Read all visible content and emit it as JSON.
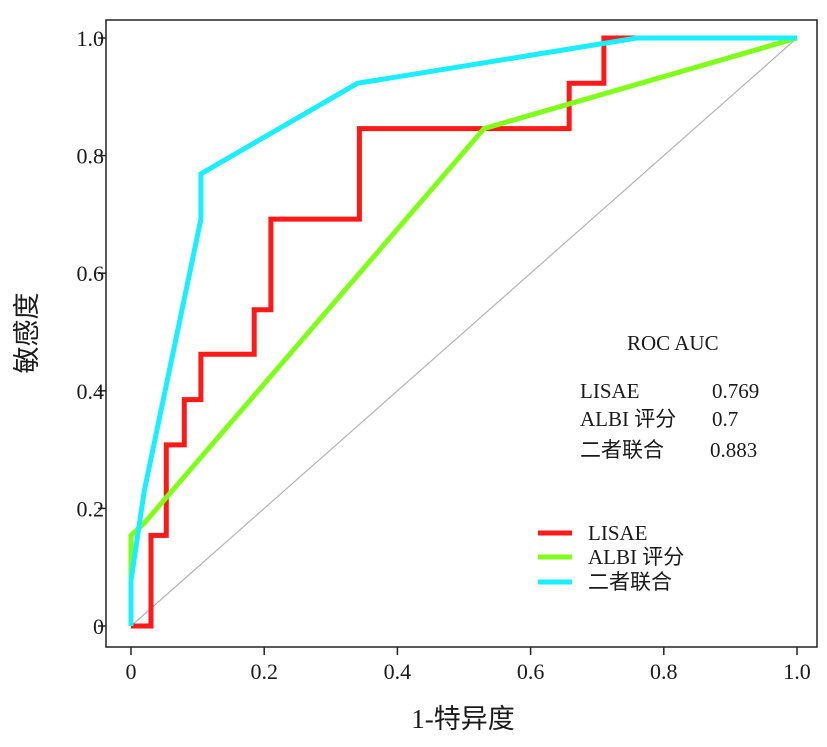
{
  "chart_data": {
    "type": "line",
    "title": "",
    "xlabel": "1-特异度",
    "ylabel": "敏感度",
    "xlim": [
      0,
      1.0
    ],
    "ylim": [
      0,
      1.0
    ],
    "x_ticks": [
      {
        "value": 0,
        "label": "0"
      },
      {
        "value": 0.2,
        "label": "0.2"
      },
      {
        "value": 0.4,
        "label": "0.4"
      },
      {
        "value": 0.6,
        "label": "0.6"
      },
      {
        "value": 0.8,
        "label": "0.8"
      },
      {
        "value": 1.0,
        "label": "1.0"
      }
    ],
    "y_ticks": [
      {
        "value": 0,
        "label": "0"
      },
      {
        "value": 0.2,
        "label": "0.2"
      },
      {
        "value": 0.4,
        "label": "0.4"
      },
      {
        "value": 0.6,
        "label": "0.6"
      },
      {
        "value": 0.8,
        "label": "0.8"
      },
      {
        "value": 1.0,
        "label": "1.0"
      }
    ],
    "grid": false,
    "reference_line": {
      "x": [
        0,
        1
      ],
      "y": [
        0,
        1
      ],
      "color": "#b4b4b4"
    },
    "series": [
      {
        "name": "LISAE",
        "color": "#ff1a1a",
        "points": [
          [
            0,
            0
          ],
          [
            0.03,
            0
          ],
          [
            0.03,
            0.154
          ],
          [
            0.053,
            0.154
          ],
          [
            0.053,
            0.308
          ],
          [
            0.08,
            0.308
          ],
          [
            0.08,
            0.385
          ],
          [
            0.105,
            0.385
          ],
          [
            0.105,
            0.462
          ],
          [
            0.185,
            0.462
          ],
          [
            0.185,
            0.538
          ],
          [
            0.21,
            0.538
          ],
          [
            0.21,
            0.692
          ],
          [
            0.343,
            0.692
          ],
          [
            0.343,
            0.846
          ],
          [
            0.658,
            0.846
          ],
          [
            0.658,
            0.923
          ],
          [
            0.71,
            0.923
          ],
          [
            0.71,
            1.0
          ],
          [
            1.0,
            1.0
          ]
        ]
      },
      {
        "name": "ALBI 评分",
        "color": "#7fff1a",
        "points": [
          [
            0,
            0.077
          ],
          [
            0,
            0.154
          ],
          [
            0.02,
            0.175
          ],
          [
            0.53,
            0.846
          ],
          [
            1.0,
            1.0
          ]
        ]
      },
      {
        "name": "二者联合",
        "color": "#1aeeff",
        "points": [
          [
            0,
            0
          ],
          [
            0,
            0.077
          ],
          [
            0.02,
            0.23
          ],
          [
            0.105,
            0.692
          ],
          [
            0.105,
            0.769
          ],
          [
            0.34,
            0.923
          ],
          [
            0.76,
            1.0
          ],
          [
            1.0,
            1.0
          ]
        ]
      }
    ],
    "legend": {
      "position": "bottom-right",
      "entries": [
        "LISAE",
        "ALBI 评分",
        "二者联合"
      ]
    },
    "annotation": {
      "header": "ROC AUC",
      "rows": [
        {
          "name": "LISAE",
          "value": "0.769"
        },
        {
          "name": "ALBI 评分",
          "value": "0.7"
        },
        {
          "name": "二者联合",
          "value": "0.883"
        }
      ]
    }
  }
}
